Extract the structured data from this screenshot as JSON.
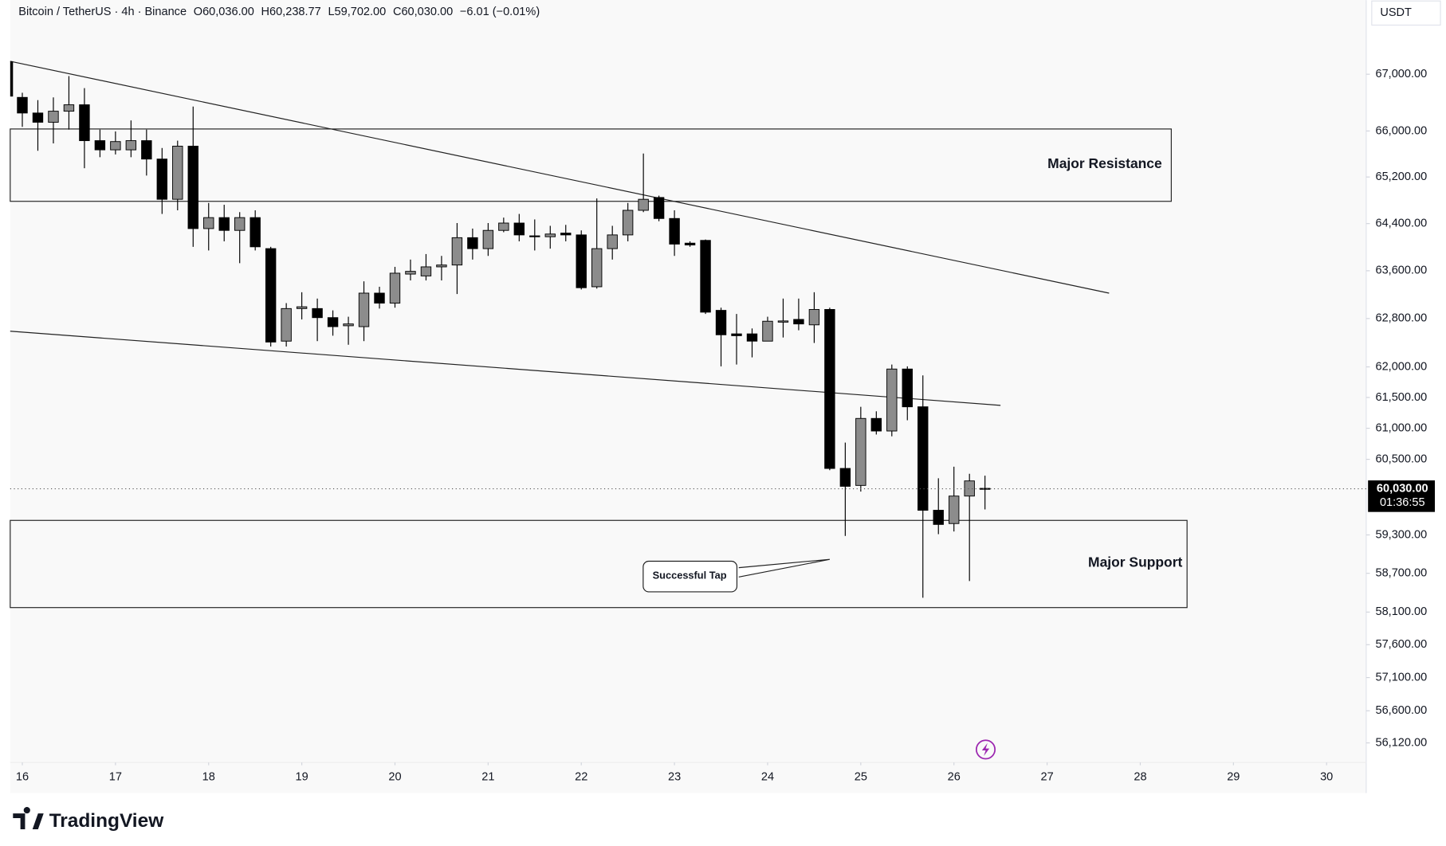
{
  "header": {
    "symbol": "Bitcoin / TetherUS · 4h · Binance",
    "open": "O60,036.00",
    "high": "H60,238.77",
    "low": "L59,702.00",
    "close": "C60,030.00",
    "change": "−6.01 (−0.01%)"
  },
  "chart_data": {
    "type": "candlestick",
    "currency": "USDT",
    "log_scale": true,
    "grid": false,
    "up_color": "#8c8c8c",
    "down_color": "#000000",
    "ylim": [
      55830,
      68330
    ],
    "yticks": [
      {
        "value": 67000,
        "label": "67,000.00"
      },
      {
        "value": 66000,
        "label": "66,000.00"
      },
      {
        "value": 65200,
        "label": "65,200.00"
      },
      {
        "value": 64400,
        "label": "64,400.00"
      },
      {
        "value": 63600,
        "label": "63,600.00"
      },
      {
        "value": 62800,
        "label": "62,800.00"
      },
      {
        "value": 62000,
        "label": "62,000.00"
      },
      {
        "value": 61500,
        "label": "61,500.00"
      },
      {
        "value": 61000,
        "label": "61,000.00"
      },
      {
        "value": 60500,
        "label": "60,500.00"
      },
      {
        "value": 59300,
        "label": "59,300.00"
      },
      {
        "value": 58700,
        "label": "58,700.00"
      },
      {
        "value": 58100,
        "label": "58,100.00"
      },
      {
        "value": 57600,
        "label": "57,600.00"
      },
      {
        "value": 57100,
        "label": "57,100.00"
      },
      {
        "value": 56600,
        "label": "56,600.00"
      },
      {
        "value": 56120,
        "label": "56,120.00"
      }
    ],
    "xlim": [
      -0.78,
      86.55
    ],
    "xticks": [
      {
        "value": 0,
        "label": "16"
      },
      {
        "value": 6,
        "label": "17"
      },
      {
        "value": 12,
        "label": "18"
      },
      {
        "value": 18,
        "label": "19"
      },
      {
        "value": 24,
        "label": "20"
      },
      {
        "value": 30,
        "label": "21"
      },
      {
        "value": 36,
        "label": "22"
      },
      {
        "value": 42,
        "label": "23"
      },
      {
        "value": 48,
        "label": "24"
      },
      {
        "value": 54,
        "label": "25"
      },
      {
        "value": 60,
        "label": "26"
      },
      {
        "value": 66,
        "label": "27"
      },
      {
        "value": 72,
        "label": "28"
      },
      {
        "value": 78,
        "label": "29"
      },
      {
        "value": 84,
        "label": "30"
      }
    ],
    "open": [
      66590,
      66315,
      66153,
      66347,
      66460,
      65831,
      65671,
      65671,
      65831,
      65511,
      64816,
      65735,
      64315,
      64502,
      64284,
      64502,
      63974,
      62425,
      62966,
      62966,
      62815,
      62680,
      62665,
      63224,
      63057,
      63544,
      63513,
      63666,
      63697,
      64160,
      63974,
      64284,
      64409,
      64191,
      64176,
      64238,
      64207,
      63331,
      63974,
      64207,
      64627,
      64847,
      64487,
      64067,
      64114,
      62936,
      62545,
      62545,
      62425,
      62740,
      62785,
      62695,
      62951,
      60354,
      60083,
      61159,
      60956,
      61965,
      61348,
      59689,
      59479,
      59914,
      60036
    ],
    "high": [
      66672,
      66542,
      66590,
      66967,
      66754,
      66024,
      65992,
      66185,
      66024,
      65703,
      65831,
      66428,
      64753,
      64722,
      64596,
      64627,
      64005,
      63057,
      63239,
      63133,
      62936,
      62830,
      63422,
      63331,
      63666,
      63789,
      63882,
      63851,
      64409,
      64315,
      64409,
      64502,
      64565,
      64471,
      64362,
      64378,
      64284,
      64831,
      64362,
      64753,
      65607,
      64879,
      64627,
      64098,
      64129,
      62981,
      62876,
      62635,
      62830,
      63133,
      63133,
      63239,
      62981,
      60769,
      61348,
      61275,
      62039,
      62009,
      61861,
      60197,
      60382,
      60268,
      60238.77
    ],
    "low": [
      66072,
      65655,
      65783,
      66024,
      65352,
      65543,
      65591,
      65543,
      65225,
      64565,
      64627,
      64005,
      63943,
      64098,
      63728,
      63943,
      62336,
      62336,
      62785,
      62425,
      62515,
      62365,
      62425,
      62966,
      62981,
      63437,
      63437,
      63437,
      63209,
      63789,
      63851,
      64253,
      64098,
      63943,
      63974,
      64098,
      63285,
      63300,
      63789,
      64098,
      64596,
      64440,
      63851,
      64005,
      62876,
      62009,
      62039,
      62157,
      62425,
      62485,
      62605,
      62395,
      60326,
      59284,
      59985,
      60899,
      60870,
      61130,
      58321,
      59312,
      59354,
      58580,
      59702
    ],
    "close": [
      66315,
      66153,
      66347,
      66460,
      65831,
      65671,
      65815,
      65831,
      65511,
      64816,
      65735,
      64315,
      64502,
      64284,
      64502,
      64005,
      62410,
      62966,
      62996,
      62815,
      62665,
      62710,
      63224,
      63057,
      63559,
      63590,
      63666,
      63697,
      64160,
      63974,
      64284,
      64409,
      64207,
      64176,
      64222,
      64207,
      63315,
      63974,
      64207,
      64627,
      64816,
      64487,
      64051,
      64036,
      62906,
      62530,
      62515,
      62425,
      62755,
      62760,
      62710,
      62951,
      60354,
      60069,
      61159,
      60956,
      61965,
      61348,
      59689,
      59465,
      59914,
      60155,
      60030
    ],
    "current_price": 60030,
    "current_price_label": "60,030.00",
    "countdown": "01:36:55",
    "annotations": [
      "Major Resistance",
      "Major Support",
      "Successful Tap"
    ]
  },
  "footer": {
    "brand": "TradingView"
  }
}
